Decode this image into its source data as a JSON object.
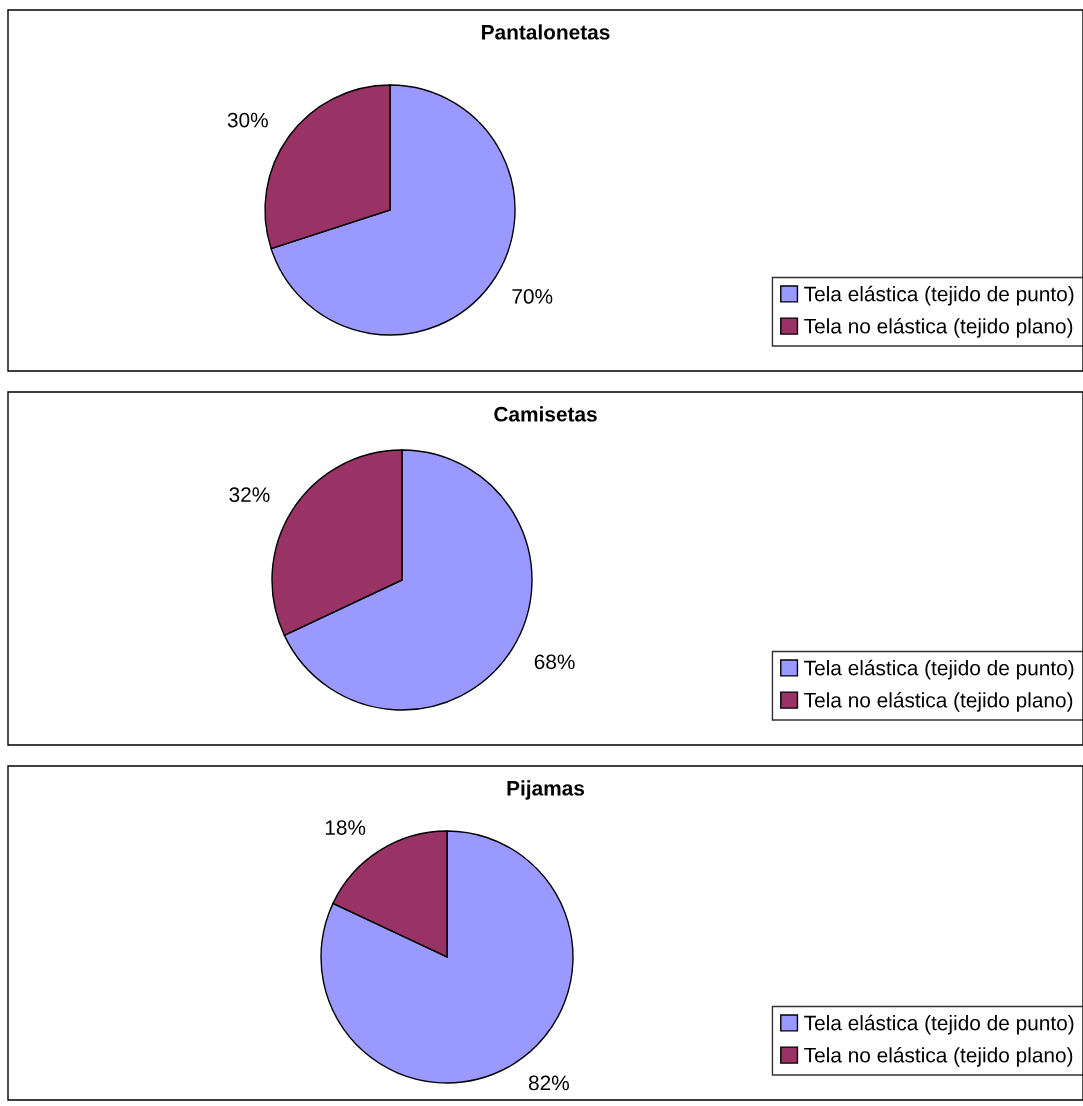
{
  "chart_data": [
    {
      "type": "pie",
      "title": "Pantalonetas",
      "categories": [
        "Tela elástica (tejido de punto)",
        "Tela no elástica (tejido plano)"
      ],
      "values": [
        70,
        30
      ],
      "colors": [
        "#9999ff",
        "#993366"
      ],
      "value_labels": [
        "70%",
        "30%"
      ],
      "legend": "bottom right"
    },
    {
      "type": "pie",
      "title": "Camisetas",
      "categories": [
        "Tela elástica (tejido de punto)",
        "Tela no elástica (tejido plano)"
      ],
      "values": [
        68,
        32
      ],
      "colors": [
        "#9999ff",
        "#993366"
      ],
      "value_labels": [
        "68%",
        "32%"
      ],
      "legend": "bottom right"
    },
    {
      "type": "pie",
      "title": "Pijamas",
      "categories": [
        "Tela elástica (tejido de punto)",
        "Tela no elástica (tejido plano)"
      ],
      "values": [
        82,
        18
      ],
      "colors": [
        "#9999ff",
        "#993366"
      ],
      "value_labels": [
        "82%",
        "18%"
      ],
      "legend": "bottom right"
    }
  ]
}
